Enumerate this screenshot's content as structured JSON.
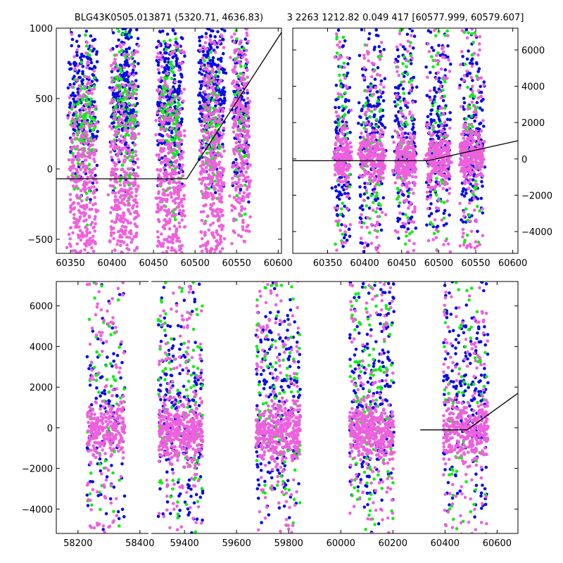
{
  "title_left": "BLG43K0505.013871 (5320.71, 4636.83)",
  "title_right": "3 2263 1212.82 0.049 417 [60577.999, 60579.607]",
  "colors": {
    "blue": "#0b0be6",
    "green": "#11ee11",
    "pink": "#ee60dd",
    "line": "#000000"
  },
  "chart_data": [
    {
      "name": "top-left",
      "type": "scatter",
      "title": "BLG43K0505.013871 (5320.71, 4636.83)",
      "xlim": [
        60333,
        60604
      ],
      "ylim": [
        -600,
        1000
      ],
      "xticks": [
        60350,
        60400,
        60450,
        60500,
        60550,
        60600
      ],
      "yticks": [
        1000,
        500,
        0,
        -500
      ],
      "yaxis_side": "left",
      "model_line": {
        "x": [
          60333,
          60490,
          60604
        ],
        "y": [
          -70,
          -70,
          970
        ]
      },
      "series": [
        {
          "color": "blue",
          "clusters": [
            [
              60365,
              0.12,
              220,
              480,
              0.35
            ],
            [
              60415,
              0.12,
              260,
              540,
              0.35
            ],
            [
              60470,
              0.11,
              300,
              520,
              0.35
            ],
            [
              60520,
              0.11,
              280,
              520,
              0.35
            ],
            [
              60555,
              0.07,
              130,
              450,
              0.35
            ]
          ]
        },
        {
          "color": "green",
          "clusters": [
            [
              60365,
              0.1,
              140,
              300,
              0.3
            ],
            [
              60415,
              0.1,
              150,
              350,
              0.3
            ],
            [
              60470,
              0.08,
              130,
              330,
              0.3
            ],
            [
              60520,
              0.08,
              110,
              330,
              0.3
            ],
            [
              60555,
              0.05,
              60,
              330,
              0.3
            ]
          ]
        },
        {
          "color": "pink",
          "clusters": [
            [
              60365,
              0.12,
              380,
              -180,
              0.55
            ],
            [
              60415,
              0.12,
              420,
              -170,
              0.55
            ],
            [
              60470,
              0.12,
              420,
              -160,
              0.55
            ],
            [
              60520,
              0.1,
              400,
              -100,
              0.55
            ],
            [
              60555,
              0.08,
              280,
              250,
              0.55
            ]
          ]
        }
      ]
    },
    {
      "name": "top-right",
      "type": "scatter",
      "title": "3 2263 1212.82 0.049 417 [60577.999, 60579.607]",
      "xlim": [
        60303,
        60607
      ],
      "ylim": [
        -5200,
        7200
      ],
      "xticks": [
        60350,
        60400,
        60450,
        60500,
        60550,
        60600
      ],
      "yticks": [
        6000,
        4000,
        2000,
        0,
        -2000,
        -4000
      ],
      "yaxis_side": "right",
      "model_line": {
        "x": [
          60303,
          60485,
          60607
        ],
        "y": [
          -100,
          -100,
          1000
        ]
      },
      "series": [
        {
          "color": "blue",
          "clusters": [
            [
              60370,
              0.07,
              120,
              800,
              0.45
            ],
            [
              60410,
              0.11,
              180,
              1200,
              0.45
            ],
            [
              60455,
              0.09,
              170,
              1300,
              0.45
            ],
            [
              60500,
              0.1,
              170,
              1400,
              0.45
            ],
            [
              60545,
              0.1,
              180,
              1500,
              0.45
            ]
          ]
        },
        {
          "color": "green",
          "clusters": [
            [
              60370,
              0.05,
              50,
              600,
              0.6
            ],
            [
              60410,
              0.08,
              70,
              700,
              0.6
            ],
            [
              60455,
              0.07,
              60,
              800,
              0.6
            ],
            [
              60500,
              0.07,
              60,
              900,
              0.6
            ],
            [
              60545,
              0.07,
              70,
              900,
              0.6
            ]
          ]
        },
        {
          "color": "pink",
          "clusters": [
            [
              60370,
              0.07,
              200,
              0,
              0.12
            ],
            [
              60410,
              0.11,
              300,
              0,
              0.12
            ],
            [
              60455,
              0.09,
              280,
              0,
              0.12
            ],
            [
              60500,
              0.1,
              280,
              0,
              0.12
            ],
            [
              60545,
              0.1,
              320,
              250,
              0.12
            ]
          ]
        }
      ]
    },
    {
      "name": "bottom",
      "type": "scatter",
      "xlim": [
        58130,
        60680
      ],
      "ylim": [
        -5200,
        7200
      ],
      "xticks": [
        58200,
        58400,
        59400,
        59600,
        59800,
        60000,
        60200,
        60400,
        60600
      ],
      "yticks": [
        6000,
        4000,
        2000,
        0,
        -2000,
        -4000
      ],
      "yaxis_side": "left",
      "break_at": 58550,
      "model_line": {
        "x": [
          60305,
          60485,
          60680
        ],
        "y": [
          -100,
          -100,
          1700
        ]
      },
      "series": [
        {
          "color": "blue",
          "clusters": [
            [
              58290,
              0.05,
              110,
              700,
              0.5
            ],
            [
              59385,
              0.08,
              200,
              900,
              0.5
            ],
            [
              59760,
              0.08,
              200,
              1200,
              0.5
            ],
            [
              60120,
              0.1,
              200,
              1300,
              0.5
            ],
            [
              60480,
              0.08,
              210,
              1300,
              0.5
            ]
          ]
        },
        {
          "color": "green",
          "clusters": [
            [
              58290,
              0.04,
              70,
              1100,
              0.6
            ],
            [
              59385,
              0.07,
              120,
              1400,
              0.6
            ],
            [
              59760,
              0.07,
              110,
              1300,
              0.6
            ],
            [
              60120,
              0.08,
              130,
              1400,
              0.6
            ],
            [
              60480,
              0.06,
              80,
              1100,
              0.6
            ]
          ]
        },
        {
          "color": "pink",
          "clusters": [
            [
              58290,
              0.05,
              360,
              0,
              0.12
            ],
            [
              59385,
              0.08,
              480,
              -200,
              0.12
            ],
            [
              59760,
              0.08,
              480,
              -200,
              0.12
            ],
            [
              60120,
              0.1,
              480,
              -250,
              0.12
            ],
            [
              60480,
              0.08,
              440,
              -150,
              0.12
            ]
          ]
        }
      ]
    }
  ]
}
